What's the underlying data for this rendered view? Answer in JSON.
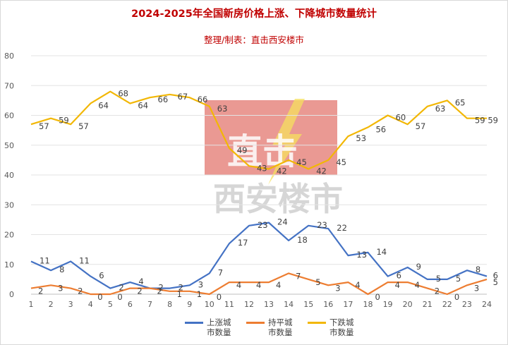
{
  "chart_data": {
    "type": "line",
    "title": "2024-2025年全国新房价格上涨、下降城市数量统计",
    "subtitle": "整理/制表：直击西安楼市",
    "watermark": {
      "top": "直击",
      "bottom": "西安楼市"
    },
    "categories": [
      "1",
      "2",
      "3",
      "4",
      "5",
      "6",
      "7",
      "8",
      "9",
      "10",
      "11",
      "12",
      "13",
      "14",
      "15",
      "16",
      "17",
      "18",
      "19",
      "20",
      "21",
      "22",
      "23",
      "24"
    ],
    "ylim": [
      0,
      80
    ],
    "yticks": [
      "0",
      "10",
      "20",
      "30",
      "40",
      "50",
      "60",
      "70",
      "80"
    ],
    "grid": true,
    "legend_position": "bottom",
    "series": [
      {
        "name": "上涨城市数量",
        "color": "#4472c4",
        "values": [
          11,
          8,
          11,
          6,
          2,
          4,
          2,
          2,
          3,
          7,
          17,
          23,
          24,
          18,
          23,
          22,
          13,
          14,
          6,
          9,
          5,
          5,
          8,
          6
        ]
      },
      {
        "name": "持平城市数量",
        "color": "#ed7d31",
        "values": [
          2,
          3,
          2,
          0,
          0,
          2,
          2,
          1,
          1,
          0,
          4,
          4,
          4,
          7,
          5,
          3,
          4,
          0,
          4,
          4,
          2,
          0,
          3,
          5
        ]
      },
      {
        "name": "下跌城市数量",
        "color": "#f2b705",
        "values": [
          57,
          59,
          57,
          64,
          68,
          64,
          66,
          67,
          66,
          63,
          49,
          43,
          42,
          45,
          42,
          45,
          53,
          56,
          60,
          57,
          63,
          65,
          59,
          59
        ]
      }
    ],
    "legend": [
      {
        "line1": "上涨城",
        "line2": "市数量",
        "color": "#4472c4"
      },
      {
        "line1": "持平城",
        "line2": "市数量",
        "color": "#ed7d31"
      },
      {
        "line1": "下跌城",
        "line2": "市数量",
        "color": "#f2b705"
      }
    ]
  }
}
